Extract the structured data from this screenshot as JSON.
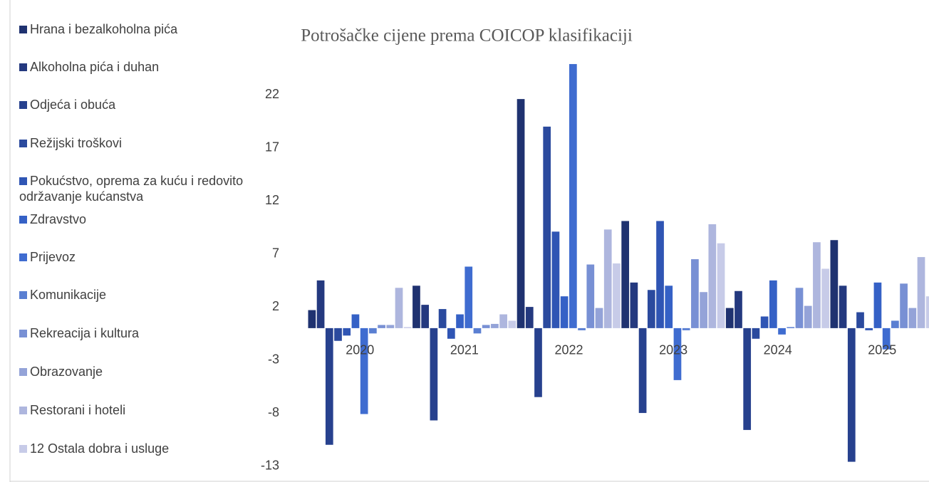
{
  "chart_data": {
    "type": "bar",
    "title": "Potrošačke cijene prema COICOP klasifikaciji",
    "categories": [
      "2020",
      "2021",
      "2022",
      "2023",
      "2024",
      "2025"
    ],
    "ylim": [
      -13.5,
      25.3
    ],
    "yticks": [
      -13,
      -8,
      -3,
      2,
      7,
      12,
      17,
      22
    ],
    "grid": false,
    "legend": "left",
    "series": [
      {
        "name": "Hrana i bezalkoholna pića",
        "color": "#1f3270",
        "values": [
          1.7,
          4.0,
          21.6,
          10.1,
          1.9,
          8.3
        ]
      },
      {
        "name": "Alkoholna pića i duhan",
        "color": "#24397f",
        "values": [
          4.5,
          2.2,
          2.0,
          4.3,
          3.5,
          4.0
        ]
      },
      {
        "name": "Odjeća i obuća",
        "color": "#27418e",
        "values": [
          -11.0,
          -8.7,
          -6.5,
          -8.0,
          -9.6,
          -12.6
        ]
      },
      {
        "name": "Režijski troškovi",
        "color": "#2b4a9e",
        "values": [
          -1.2,
          1.8,
          19.0,
          3.6,
          -1.0,
          1.5
        ]
      },
      {
        "name": "Pokućstvo, oprema za kuću i redovito održavanje kućanstva",
        "color": "#2f55b4",
        "values": [
          -0.7,
          -1.0,
          9.1,
          10.1,
          1.1,
          -0.2
        ]
      },
      {
        "name": "Zdravstvo",
        "color": "#3561c6",
        "values": [
          1.3,
          1.3,
          3.0,
          4.0,
          4.5,
          4.3
        ]
      },
      {
        "name": "Prijevoz",
        "color": "#3f6cd0",
        "values": [
          -8.1,
          5.8,
          24.9,
          -4.9,
          -0.6,
          -2.0
        ]
      },
      {
        "name": "Komunikacije",
        "color": "#5a7fd2",
        "values": [
          -0.5,
          -0.5,
          -0.2,
          -0.2,
          0.1,
          0.7
        ]
      },
      {
        "name": "Rekreacija i kultura",
        "color": "#7890d4",
        "values": [
          0.3,
          0.3,
          6.0,
          6.5,
          3.8,
          4.2
        ]
      },
      {
        "name": "Obrazovanje",
        "color": "#94a3d8",
        "values": [
          0.3,
          0.4,
          1.9,
          3.4,
          2.1,
          1.9
        ]
      },
      {
        "name": "Restorani i hoteli",
        "color": "#aeb6de",
        "values": [
          3.8,
          1.3,
          9.3,
          9.8,
          8.1,
          6.7
        ]
      },
      {
        "name": "12 Ostala dobra i usluge",
        "color": "#c7cbe8",
        "values": [
          0.1,
          0.7,
          6.1,
          8.0,
          5.6,
          3.0
        ]
      }
    ]
  }
}
